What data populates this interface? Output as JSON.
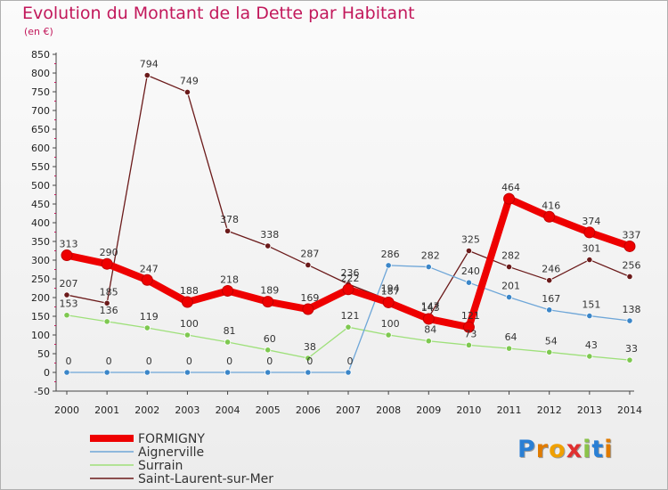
{
  "title": "Evolution du Montant de la Dette par Habitant",
  "subtitle": "(en €)",
  "logo": {
    "text": "Proxiti",
    "letters": [
      "P",
      "r",
      "o",
      "x",
      "i",
      "t",
      "i"
    ],
    "colors": [
      "#2a7fd4",
      "#e07b00",
      "#f0a000",
      "#e03030",
      "#8bc34a",
      "#2a7fd4",
      "#e07b00"
    ]
  },
  "chart_data": {
    "type": "line",
    "title": "Evolution du Montant de la Dette par Habitant",
    "ylabel": "(en €)",
    "xlabel": "",
    "ylim": [
      -50,
      850
    ],
    "yticks": [
      -50,
      0,
      50,
      100,
      150,
      200,
      250,
      300,
      350,
      400,
      450,
      500,
      550,
      600,
      650,
      700,
      750,
      800,
      850
    ],
    "x": [
      "2000",
      "2001",
      "2002",
      "2003",
      "2004",
      "2005",
      "2006",
      "2007",
      "2008",
      "2009",
      "2010",
      "2011",
      "2012",
      "2013",
      "2014"
    ],
    "grid": false,
    "legend_position": "bottom-left",
    "series": [
      {
        "name": "Saint-Laurent-sur-Mer",
        "color": "#6b1a1a",
        "marker": "#6b1a1a",
        "values": [
          207,
          185,
          794,
          749,
          378,
          338,
          287,
          236,
          194,
          147,
          325,
          282,
          246,
          301,
          256
        ]
      },
      {
        "name": "Surrain",
        "color": "#9ee07a",
        "marker": "#7ec850",
        "values": [
          153,
          136,
          119,
          100,
          81,
          60,
          38,
          121,
          100,
          84,
          73,
          64,
          54,
          43,
          33
        ]
      },
      {
        "name": "Aignerville",
        "color": "#6ea6d8",
        "marker": "#3b86c8",
        "values": [
          0,
          0,
          0,
          0,
          0,
          0,
          0,
          0,
          286,
          282,
          240,
          201,
          167,
          151,
          138
        ]
      },
      {
        "name": "FORMIGNY",
        "color": "#ee0000",
        "marker": "#ee0000",
        "values": [
          313,
          290,
          247,
          188,
          218,
          189,
          169,
          222,
          187,
          143,
          121,
          464,
          416,
          374,
          337
        ]
      }
    ]
  }
}
